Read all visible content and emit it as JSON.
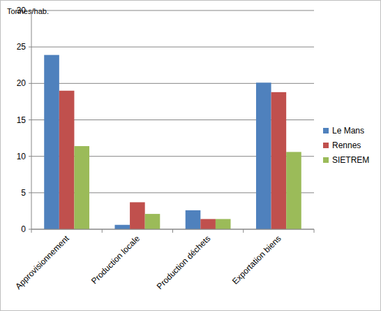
{
  "chart_data": {
    "type": "bar",
    "y_label": "Tonnes/hab.",
    "categories": [
      "Approvisionnement",
      "Production locale",
      "Production déchets",
      "Exportation biens"
    ],
    "series": [
      {
        "name": "Le Mans",
        "color": "#4f81bd",
        "values": [
          23.9,
          0.6,
          2.6,
          20.1
        ]
      },
      {
        "name": "Rennes",
        "color": "#c0504d",
        "values": [
          19.0,
          3.7,
          1.4,
          18.8
        ]
      },
      {
        "name": "SIETREM",
        "color": "#9bbb59",
        "values": [
          11.4,
          2.1,
          1.4,
          10.6
        ]
      }
    ],
    "ylim": [
      0,
      30
    ],
    "yticks": [
      0,
      5,
      10,
      15,
      20,
      25,
      30
    ],
    "grid": true,
    "legend": "right"
  }
}
